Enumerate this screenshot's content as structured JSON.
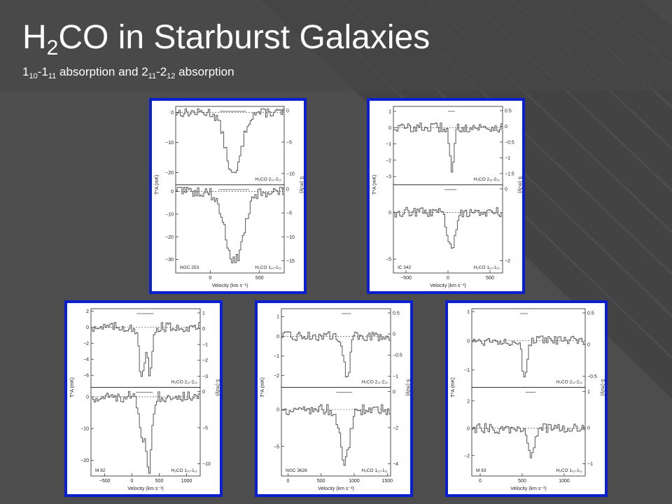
{
  "slide": {
    "title_main": "H",
    "title_sub": "2",
    "title_rest": "CO in Starburst Galaxies",
    "subtitle_parts": [
      {
        "t": "1",
        "sub": false
      },
      {
        "t": "10",
        "sub": true
      },
      {
        "t": "-1",
        "sub": false
      },
      {
        "t": "11",
        "sub": true
      },
      {
        "t": " absorption and 2",
        "sub": false
      },
      {
        "t": "11",
        "sub": true
      },
      {
        "t": "-2",
        "sub": false
      },
      {
        "t": "12",
        "sub": true
      },
      {
        "t": " absorption",
        "sub": false
      }
    ]
  },
  "colors": {
    "background": "#505050",
    "panel_border": "#0a1fd0",
    "panel_bg": "#ffffff",
    "spectrum": "#555555"
  },
  "chart_data": [
    {
      "type": "line",
      "galaxy": "NGC 253",
      "xlabel": "Velocity (km s⁻¹)",
      "ylabel_left": "T*A (mK)",
      "ylabel_right": "S (mJy)",
      "xlim": [
        -350,
        750
      ],
      "x_ticks": [
        "0",
        "500"
      ],
      "top": {
        "line_label": "H₂CO 2₁₁-2₁₂",
        "ylim": [
          -24,
          2
        ],
        "left_ticks": [
          "0",
          "−10",
          "−20"
        ],
        "right_ticks": [
          "0",
          "−5",
          "−10"
        ],
        "absorption": [
          {
            "center": 230,
            "width": 110,
            "depth": -21
          }
        ]
      },
      "bottom": {
        "line_label": "H₂CO 1₁₀-1₁₁",
        "ylim": [
          -36,
          3
        ],
        "left_ticks": [
          "0",
          "−10",
          "−20",
          "−30"
        ],
        "right_ticks": [
          "0",
          "−5",
          "−10",
          "−15"
        ],
        "absorption": [
          {
            "center": 240,
            "width": 130,
            "depth": -31
          }
        ]
      }
    },
    {
      "type": "line",
      "galaxy": "IC 342",
      "xlabel": "Velocity (km s⁻¹)",
      "ylabel_left": "T*A (mK)",
      "ylabel_right": "S (mJy)",
      "xlim": [
        -650,
        650
      ],
      "x_ticks": [
        "−500",
        "0",
        "500"
      ],
      "top": {
        "line_label": "H₂CO 2₁₁-2₁₂",
        "ylim": [
          -3.5,
          1.3
        ],
        "left_ticks": [
          "1",
          "0",
          "−1",
          "−2",
          "−3"
        ],
        "right_ticks": [
          "0.5",
          "0",
          "−0.5",
          "−1",
          "−1.5"
        ],
        "absorption": [
          {
            "center": 40,
            "width": 35,
            "depth": -2.8
          }
        ]
      },
      "bottom": {
        "line_label": "H₂CO 1₁₀-1₁₁",
        "ylim": [
          -6.5,
          3
        ],
        "left_ticks": [
          "0",
          "−5"
        ],
        "right_ticks": [
          "0",
          "−2"
        ],
        "absorption": [
          {
            "center": 30,
            "width": 60,
            "depth": -4
          }
        ]
      }
    },
    {
      "type": "line",
      "galaxy": "M 82",
      "xlabel": "Velocity (km s⁻¹)",
      "ylabel_left": "T*A (mK)",
      "ylabel_right": "S (mJy)",
      "xlim": [
        -750,
        1250
      ],
      "x_ticks": [
        "−500",
        "0",
        "500",
        "1000"
      ],
      "top": {
        "line_label": "H₂CO 2₁₁-2₁₂",
        "ylim": [
          -7.5,
          2.3
        ],
        "left_ticks": [
          "2",
          "0",
          "−2",
          "−4",
          "−6"
        ],
        "right_ticks": [
          "1",
          "0",
          "−1",
          "−2",
          "−3"
        ],
        "absorption": [
          {
            "center": 170,
            "width": 70,
            "depth": -6.5
          },
          {
            "center": 320,
            "width": 60,
            "depth": -6
          }
        ]
      },
      "bottom": {
        "line_label": "H₂CO 1₁₀-1₁₁",
        "ylim": [
          -25,
          3
        ],
        "left_ticks": [
          "0",
          "−10",
          "−20"
        ],
        "right_ticks": [
          "0",
          "−5",
          "−10"
        ],
        "absorption": [
          {
            "center": 170,
            "width": 80,
            "depth": -12
          },
          {
            "center": 300,
            "width": 70,
            "depth": -23
          }
        ]
      }
    },
    {
      "type": "line",
      "galaxy": "NGC 3628",
      "xlabel": "Velocity (km s⁻¹)",
      "ylabel_left": "T*A (mK)",
      "ylabel_right": "S (mJy)",
      "xlim": [
        -100,
        1550
      ],
      "x_ticks": [
        "0",
        "500",
        "1000",
        "1500"
      ],
      "top": {
        "line_label": "H₂CO 2₁₁-2₁₂",
        "ylim": [
          -2.6,
          1.4
        ],
        "left_ticks": [
          "1",
          "0",
          "−1",
          "−2"
        ],
        "right_ticks": [
          "0.5",
          "0",
          "−0.5",
          "−1"
        ],
        "absorption": [
          {
            "center": 880,
            "width": 60,
            "depth": -2.2
          }
        ]
      },
      "bottom": {
        "line_label": "H₂CO 1₁₀-1₁₁",
        "ylim": [
          -9,
          3
        ],
        "left_ticks": [
          "0",
          "−5"
        ],
        "right_ticks": [
          "0",
          "−2",
          "−4"
        ],
        "absorption": [
          {
            "center": 850,
            "width": 100,
            "depth": -7
          }
        ]
      }
    },
    {
      "type": "line",
      "galaxy": "M 83",
      "xlabel": "Velocity (km s⁻¹)",
      "ylabel_left": "T*A (mK)",
      "ylabel_right": "S (mJy)",
      "xlim": [
        -100,
        1250
      ],
      "x_ticks": [
        "0",
        "500",
        "1000"
      ],
      "top": {
        "line_label": "H₂CO 2₁₁-2₁₂",
        "ylim": [
          -1.6,
          1.1
        ],
        "left_ticks": [
          "1",
          "0",
          "−1"
        ],
        "right_ticks": [
          "0.5",
          "0",
          "−0.5"
        ],
        "absorption": [
          {
            "center": 520,
            "width": 40,
            "depth": -1.3
          }
        ]
      },
      "bottom": {
        "line_label": "H₂CO 1₁₀-1₁₁",
        "ylim": [
          -3.5,
          3
        ],
        "left_ticks": [
          "2",
          "0",
          "−2"
        ],
        "right_ticks": [
          "1",
          "0",
          "−1"
        ],
        "absorption": [
          {
            "center": 600,
            "width": 50,
            "depth": -2
          }
        ]
      }
    }
  ]
}
